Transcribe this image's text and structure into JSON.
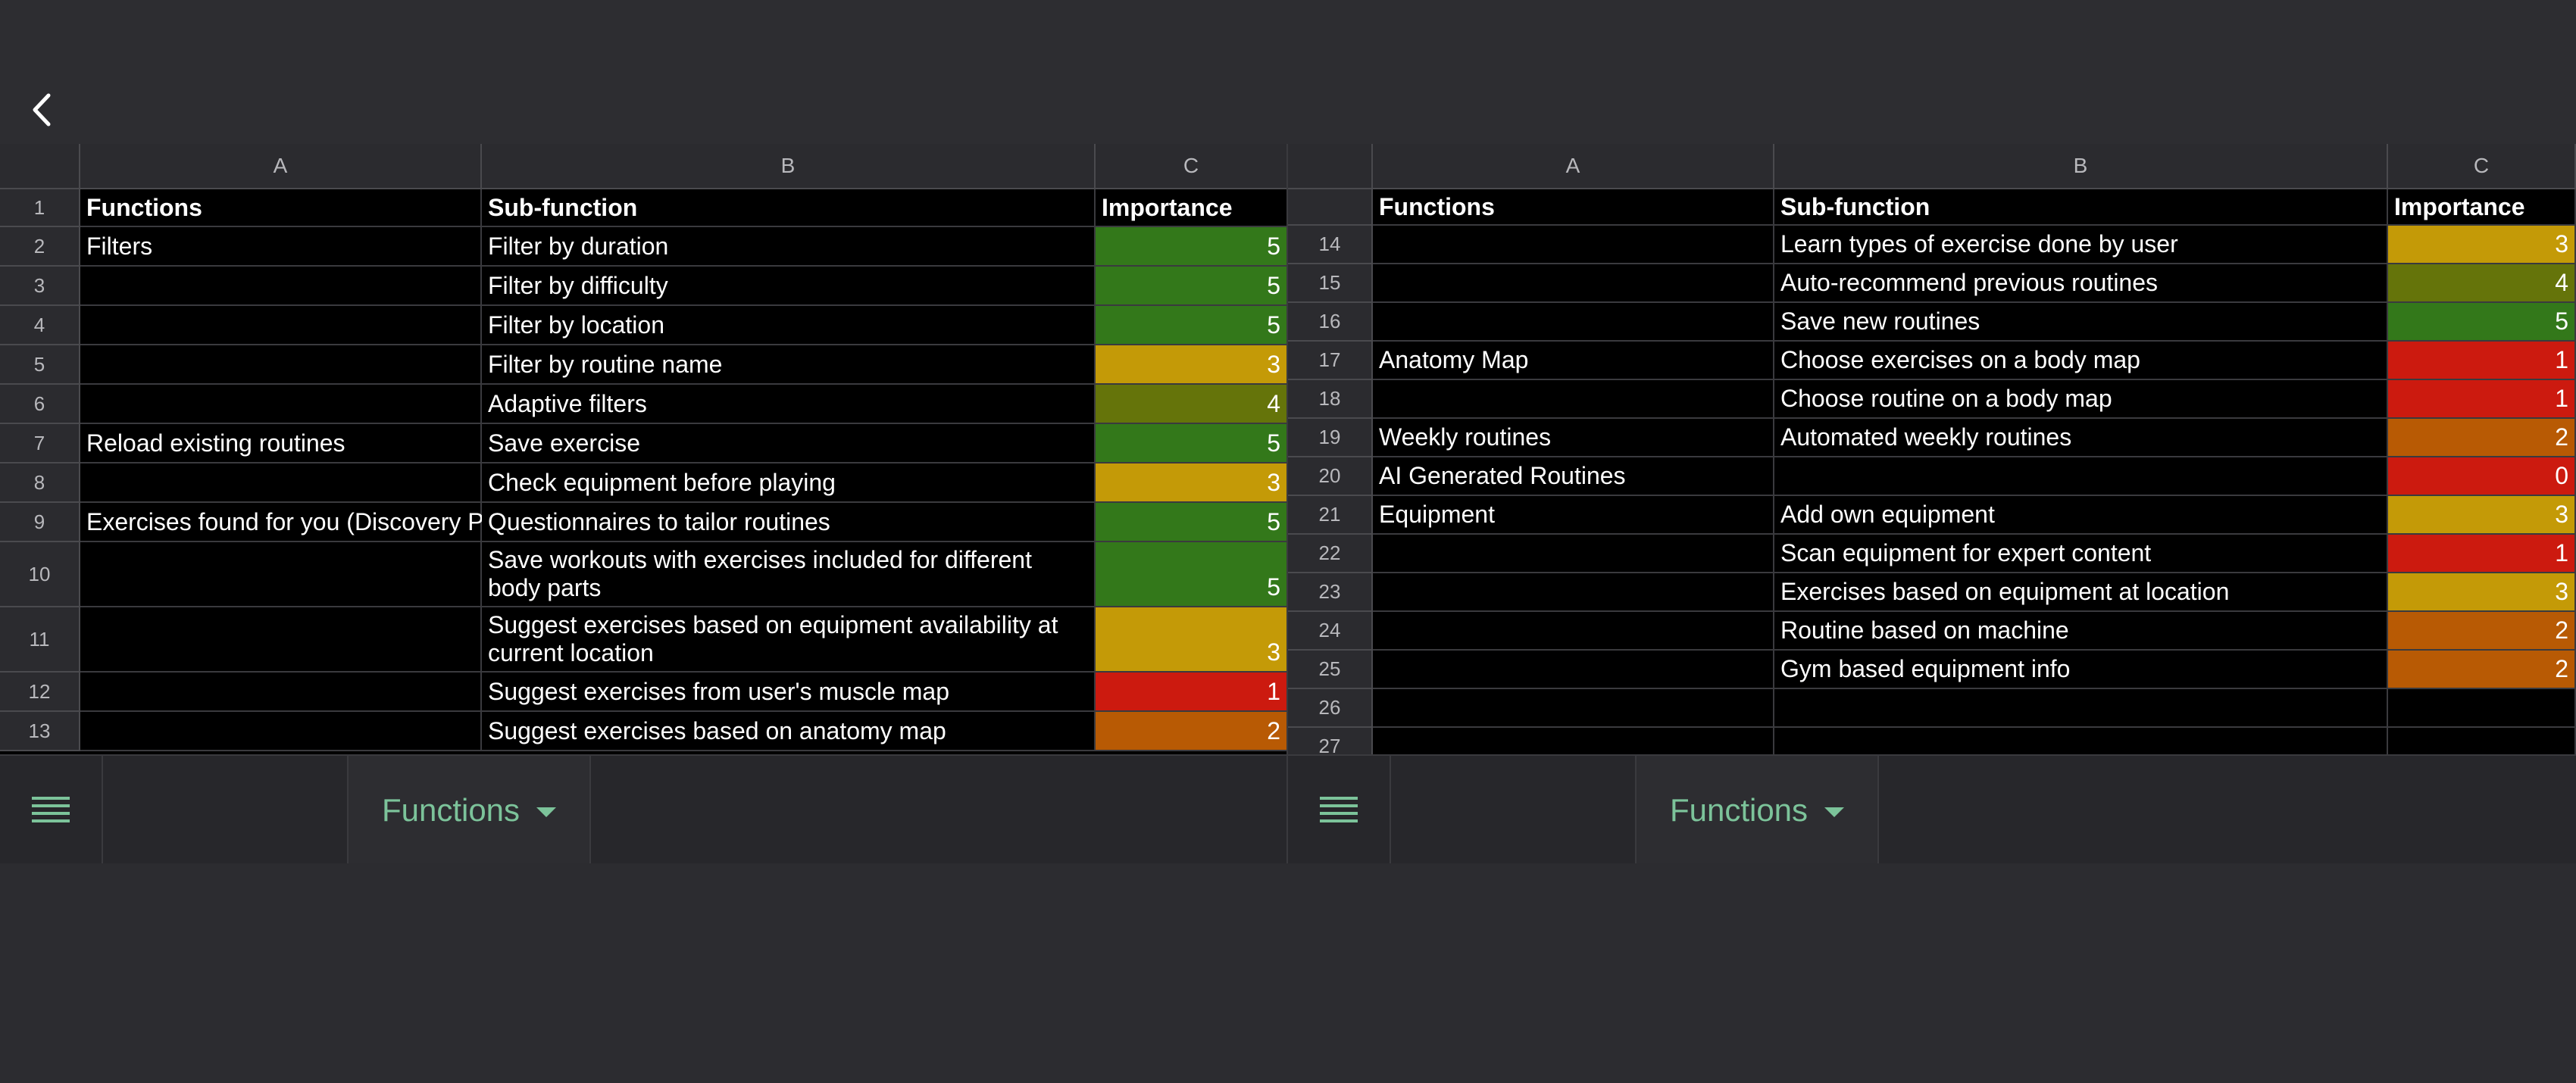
{
  "colors": {
    "c0": "#cc1a0f",
    "c1": "#cc1a0f",
    "c2": "#b85a04",
    "c3": "#c49a07",
    "c4": "#65740a",
    "c5": "#33781a"
  },
  "back_icon": "chevron-left-icon",
  "left": {
    "col_headers": [
      "A",
      "B",
      "C"
    ],
    "rows": [
      {
        "n": "1",
        "a": "Functions",
        "b": "Sub-function",
        "c": "Importance",
        "header": true
      },
      {
        "n": "2",
        "a": "Filters",
        "b": "Filter by duration",
        "c": "5"
      },
      {
        "n": "3",
        "a": "",
        "b": "Filter by difficulty",
        "c": "5"
      },
      {
        "n": "4",
        "a": "",
        "b": "Filter by location",
        "c": "5"
      },
      {
        "n": "5",
        "a": "",
        "b": "Filter by routine name",
        "c": "3"
      },
      {
        "n": "6",
        "a": "",
        "b": "Adaptive filters",
        "c": "4"
      },
      {
        "n": "7",
        "a": "Reload existing routines",
        "b": "Save exercise",
        "c": "5"
      },
      {
        "n": "8",
        "a": "",
        "b": "Check equipment before playing",
        "c": "3"
      },
      {
        "n": "9",
        "a": "Exercises found for you (Discovery P",
        "b": "Questionnaires to tailor routines",
        "c": "5"
      },
      {
        "n": "10",
        "a": "",
        "b": "Save workouts with exercises included for different body parts",
        "c": "5",
        "tall": true
      },
      {
        "n": "11",
        "a": "",
        "b": "Suggest exercises based on equipment availability at current location",
        "c": "3",
        "tall": true
      },
      {
        "n": "12",
        "a": "",
        "b": "Suggest exercises from user's muscle map",
        "c": "1"
      },
      {
        "n": "13",
        "a": "",
        "b": "Suggest exercises based on anatomy map",
        "c": "2"
      }
    ],
    "tab_label": "Functions"
  },
  "right": {
    "col_headers": [
      "A",
      "B",
      "C"
    ],
    "header_row": {
      "a": "Functions",
      "b": "Sub-function",
      "c": "Importance"
    },
    "rows": [
      {
        "n": "14",
        "a": "",
        "b": "Learn types of exercise done by user",
        "c": "3"
      },
      {
        "n": "15",
        "a": "",
        "b": "Auto-recommend previous routines",
        "c": "4"
      },
      {
        "n": "16",
        "a": "",
        "b": "Save new routines",
        "c": "5"
      },
      {
        "n": "17",
        "a": "Anatomy Map",
        "b": "Choose exercises on a body map",
        "c": "1"
      },
      {
        "n": "18",
        "a": "",
        "b": "Choose routine on a body map",
        "c": "1"
      },
      {
        "n": "19",
        "a": "Weekly routines",
        "b": "Automated weekly routines",
        "c": "2"
      },
      {
        "n": "20",
        "a": "AI Generated Routines",
        "b": "",
        "c": "0"
      },
      {
        "n": "21",
        "a": "Equipment",
        "b": "Add own equipment",
        "c": "3"
      },
      {
        "n": "22",
        "a": "",
        "b": "Scan equipment for expert content",
        "c": "1"
      },
      {
        "n": "23",
        "a": "",
        "b": "Exercises based on equipment at location",
        "c": "3"
      },
      {
        "n": "24",
        "a": "",
        "b": "Routine based on machine",
        "c": "2"
      },
      {
        "n": "25",
        "a": "",
        "b": "Gym based equipment info",
        "c": "2"
      },
      {
        "n": "26",
        "a": "",
        "b": "",
        "c": ""
      },
      {
        "n": "27",
        "a": "",
        "b": "",
        "c": ""
      }
    ],
    "tab_label": "Functions"
  }
}
